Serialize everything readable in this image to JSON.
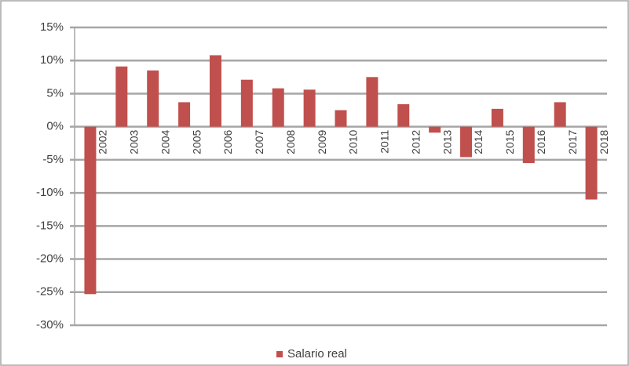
{
  "chart_data": {
    "type": "bar",
    "categories": [
      "2002",
      "2003",
      "2004",
      "2005",
      "2006",
      "2007",
      "2008",
      "2009",
      "2010",
      "2011",
      "2012",
      "2013",
      "2014",
      "2015",
      "2016",
      "2017",
      "2018"
    ],
    "series": [
      {
        "name": "Salario real",
        "color": "#c0504d",
        "values": [
          -25.3,
          9.1,
          8.5,
          3.7,
          10.8,
          7.1,
          5.8,
          5.6,
          2.5,
          7.5,
          3.4,
          -0.9,
          -4.6,
          2.7,
          -5.5,
          3.7,
          -11.0
        ]
      }
    ],
    "ylim": [
      -30,
      15
    ],
    "yticks": [
      {
        "value": -30,
        "label": "-30%"
      },
      {
        "value": -25,
        "label": "-25%"
      },
      {
        "value": -20,
        "label": "-20%"
      },
      {
        "value": -15,
        "label": "-15%"
      },
      {
        "value": -10,
        "label": "-10%"
      },
      {
        "value": -5,
        "label": "-5%"
      },
      {
        "value": 0,
        "label": "0%"
      },
      {
        "value": 5,
        "label": "5%"
      },
      {
        "value": 10,
        "label": "10%"
      },
      {
        "value": 15,
        "label": "15%"
      }
    ],
    "grid": true,
    "legend": "bottom"
  }
}
